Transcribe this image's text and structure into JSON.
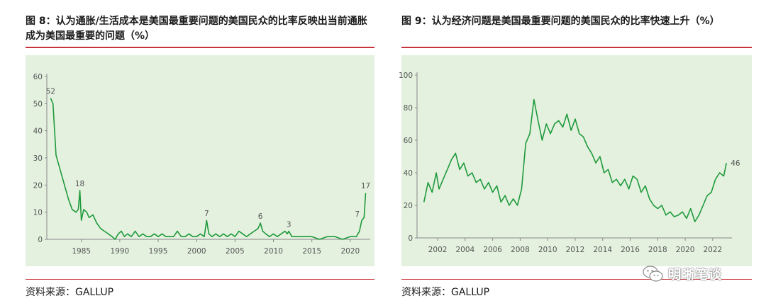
{
  "figures": [
    {
      "title": "图 8：认为通胀/生活成本是美国最重要问题的美国民众的比率反映出当前通胀成为美国最重要的问题（%）",
      "source": "资料来源：GALLUP"
    },
    {
      "title": "图 9：认为经济问题是美国最重要问题的美国民众的比率快速上升（%）",
      "source": "资料来源：GALLUP"
    }
  ],
  "watermark": {
    "text": "明晰笔谈",
    "icon": "wechat-icon"
  },
  "colors": {
    "line": "#1f9a3c",
    "rule": "#c8323c",
    "plot_bg": "#e4f1df",
    "axis": "#888888"
  },
  "chart_data": [
    {
      "type": "line",
      "xlim": [
        1980.5,
        2022.6
      ],
      "ylim": [
        0,
        60
      ],
      "x_ticks": [
        1985,
        1990,
        1995,
        2000,
        2005,
        2010,
        2015,
        2020
      ],
      "y_ticks": [
        0,
        10,
        20,
        30,
        40,
        50,
        60
      ],
      "grid": false,
      "series": [
        {
          "points": [
            [
              1981.0,
              52
            ],
            [
              1981.3,
              50
            ],
            [
              1981.7,
              31
            ],
            [
              1982.2,
              26
            ],
            [
              1982.8,
              20
            ],
            [
              1983.3,
              15
            ],
            [
              1983.8,
              11
            ],
            [
              1984.3,
              10
            ],
            [
              1984.6,
              11
            ],
            [
              1984.8,
              18
            ],
            [
              1985.0,
              7
            ],
            [
              1985.3,
              11
            ],
            [
              1985.7,
              10
            ],
            [
              1986.0,
              8
            ],
            [
              1986.5,
              9
            ],
            [
              1987.0,
              6
            ],
            [
              1987.5,
              4
            ],
            [
              1988.0,
              3
            ],
            [
              1988.5,
              2
            ],
            [
              1989.0,
              1
            ],
            [
              1989.4,
              0
            ],
            [
              1989.8,
              2
            ],
            [
              1990.2,
              3
            ],
            [
              1990.6,
              1
            ],
            [
              1991.0,
              2
            ],
            [
              1991.5,
              1
            ],
            [
              1992.0,
              3
            ],
            [
              1992.5,
              1
            ],
            [
              1993.0,
              2
            ],
            [
              1993.5,
              1
            ],
            [
              1994.0,
              1
            ],
            [
              1994.5,
              2
            ],
            [
              1995.0,
              1
            ],
            [
              1995.5,
              2
            ],
            [
              1996.0,
              1
            ],
            [
              1996.5,
              1
            ],
            [
              1997.0,
              1
            ],
            [
              1997.5,
              3
            ],
            [
              1998.0,
              1
            ],
            [
              1998.5,
              1
            ],
            [
              1999.0,
              2
            ],
            [
              1999.5,
              1
            ],
            [
              2000.0,
              1
            ],
            [
              2000.5,
              2
            ],
            [
              2001.0,
              1
            ],
            [
              2001.3,
              7
            ],
            [
              2001.6,
              2
            ],
            [
              2002.0,
              1
            ],
            [
              2002.5,
              2
            ],
            [
              2003.0,
              1
            ],
            [
              2003.5,
              2
            ],
            [
              2004.0,
              1
            ],
            [
              2004.5,
              2
            ],
            [
              2005.0,
              1
            ],
            [
              2005.5,
              3
            ],
            [
              2006.0,
              2
            ],
            [
              2006.5,
              1
            ],
            [
              2007.0,
              2
            ],
            [
              2007.5,
              3
            ],
            [
              2008.0,
              4
            ],
            [
              2008.3,
              6
            ],
            [
              2008.6,
              3
            ],
            [
              2009.0,
              2
            ],
            [
              2009.5,
              1
            ],
            [
              2010.0,
              2
            ],
            [
              2010.5,
              1
            ],
            [
              2011.0,
              2
            ],
            [
              2011.5,
              3
            ],
            [
              2011.8,
              2
            ],
            [
              2012.0,
              3
            ],
            [
              2012.4,
              1
            ],
            [
              2013.0,
              1
            ],
            [
              2014.0,
              1
            ],
            [
              2015.0,
              1
            ],
            [
              2016.0,
              0
            ],
            [
              2017.0,
              1
            ],
            [
              2018.0,
              1
            ],
            [
              2019.0,
              0
            ],
            [
              2020.0,
              1
            ],
            [
              2020.8,
              1
            ],
            [
              2021.2,
              3
            ],
            [
              2021.5,
              7
            ],
            [
              2021.8,
              8
            ],
            [
              2022.0,
              17
            ]
          ]
        }
      ],
      "annotations": [
        {
          "x": 1981.0,
          "y": 52,
          "text": "52"
        },
        {
          "x": 1984.8,
          "y": 18,
          "text": "18"
        },
        {
          "x": 2001.3,
          "y": 7,
          "text": "7"
        },
        {
          "x": 2008.3,
          "y": 6,
          "text": "6"
        },
        {
          "x": 2012.0,
          "y": 3,
          "text": "3"
        },
        {
          "x": 2021.5,
          "y": 7,
          "text": "7"
        },
        {
          "x": 2022.0,
          "y": 17,
          "text": "17"
        }
      ]
    },
    {
      "type": "line",
      "xlim": [
        2000.5,
        2023.4
      ],
      "ylim": [
        0,
        100
      ],
      "x_ticks": [
        2002,
        2004,
        2006,
        2008,
        2010,
        2012,
        2014,
        2016,
        2018,
        2020,
        2022
      ],
      "y_ticks": [
        0,
        20,
        40,
        60,
        80,
        100
      ],
      "grid": false,
      "series": [
        {
          "points": [
            [
              2001.0,
              22
            ],
            [
              2001.3,
              34
            ],
            [
              2001.6,
              28
            ],
            [
              2001.9,
              40
            ],
            [
              2002.1,
              30
            ],
            [
              2002.4,
              36
            ],
            [
              2002.7,
              42
            ],
            [
              2003.0,
              48
            ],
            [
              2003.3,
              52
            ],
            [
              2003.6,
              42
            ],
            [
              2003.9,
              46
            ],
            [
              2004.2,
              38
            ],
            [
              2004.5,
              40
            ],
            [
              2004.8,
              34
            ],
            [
              2005.1,
              36
            ],
            [
              2005.4,
              30
            ],
            [
              2005.7,
              34
            ],
            [
              2006.0,
              28
            ],
            [
              2006.3,
              32
            ],
            [
              2006.6,
              22
            ],
            [
              2006.9,
              26
            ],
            [
              2007.2,
              20
            ],
            [
              2007.5,
              24
            ],
            [
              2007.8,
              20
            ],
            [
              2008.1,
              30
            ],
            [
              2008.4,
              58
            ],
            [
              2008.7,
              64
            ],
            [
              2009.0,
              85
            ],
            [
              2009.3,
              72
            ],
            [
              2009.6,
              60
            ],
            [
              2009.9,
              70
            ],
            [
              2010.2,
              64
            ],
            [
              2010.5,
              70
            ],
            [
              2010.8,
              72
            ],
            [
              2011.1,
              68
            ],
            [
              2011.4,
              76
            ],
            [
              2011.7,
              66
            ],
            [
              2012.0,
              73
            ],
            [
              2012.3,
              64
            ],
            [
              2012.6,
              62
            ],
            [
              2012.9,
              56
            ],
            [
              2013.2,
              52
            ],
            [
              2013.5,
              46
            ],
            [
              2013.8,
              50
            ],
            [
              2014.1,
              40
            ],
            [
              2014.4,
              42
            ],
            [
              2014.7,
              34
            ],
            [
              2015.0,
              36
            ],
            [
              2015.3,
              32
            ],
            [
              2015.6,
              36
            ],
            [
              2015.9,
              30
            ],
            [
              2016.2,
              38
            ],
            [
              2016.5,
              36
            ],
            [
              2016.8,
              28
            ],
            [
              2017.1,
              32
            ],
            [
              2017.4,
              24
            ],
            [
              2017.7,
              20
            ],
            [
              2018.0,
              18
            ],
            [
              2018.3,
              20
            ],
            [
              2018.6,
              14
            ],
            [
              2018.9,
              16
            ],
            [
              2019.2,
              13
            ],
            [
              2019.5,
              14
            ],
            [
              2019.8,
              16
            ],
            [
              2020.1,
              12
            ],
            [
              2020.4,
              18
            ],
            [
              2020.7,
              10
            ],
            [
              2021.0,
              14
            ],
            [
              2021.3,
              20
            ],
            [
              2021.6,
              26
            ],
            [
              2021.9,
              28
            ],
            [
              2022.2,
              36
            ],
            [
              2022.5,
              40
            ],
            [
              2022.8,
              38
            ],
            [
              2023.0,
              46
            ]
          ]
        }
      ],
      "annotations": [
        {
          "x": 2023.0,
          "y": 46,
          "text": "46"
        }
      ]
    }
  ]
}
